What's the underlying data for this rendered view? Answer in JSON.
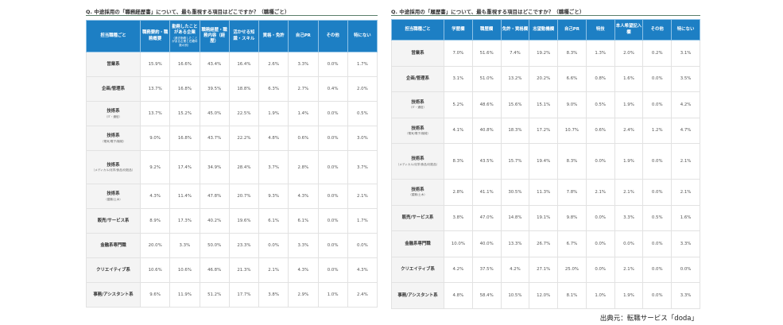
{
  "left_table": {
    "title": "Q. 中途採用の「職務経歴書」について、最も重視する項目はどこですか？（職種ごと）",
    "headers": [
      {
        "label": "担当職種ごと",
        "sub": ""
      },
      {
        "label": "職務要約・職務概要",
        "sub": ""
      },
      {
        "label": "勤務したことがある企業",
        "sub": "（過去勤務したことがある企業と在籍年数の別）"
      },
      {
        "label": "職務経歴・職務内容（経歴）",
        "sub": ""
      },
      {
        "label": "活かせる知識・スキル",
        "sub": ""
      },
      {
        "label": "資格・免許",
        "sub": ""
      },
      {
        "label": "自己PR",
        "sub": ""
      },
      {
        "label": "その他",
        "sub": ""
      },
      {
        "label": "特にない",
        "sub": ""
      }
    ],
    "rows": [
      {
        "category": "営業系",
        "sub": "",
        "values": [
          "15.9%",
          "16.6%",
          "43.4%",
          "16.4%",
          "2.6%",
          "3.3%",
          "0.0%",
          "1.7%"
        ]
      },
      {
        "category": "企画/管理系",
        "sub": "",
        "values": [
          "13.7%",
          "16.8%",
          "39.5%",
          "18.8%",
          "6.3%",
          "2.7%",
          "0.4%",
          "2.0%"
        ]
      },
      {
        "category": "技術系",
        "sub": "（IT・通信）",
        "values": [
          "13.7%",
          "15.2%",
          "45.0%",
          "22.5%",
          "1.9%",
          "1.4%",
          "0.0%",
          "0.5%"
        ]
      },
      {
        "category": "技術系",
        "sub": "（電気/電子/機械）",
        "values": [
          "9.0%",
          "16.8%",
          "43.7%",
          "22.2%",
          "4.8%",
          "0.6%",
          "0.0%",
          "3.0%"
        ]
      },
      {
        "category": "技術系",
        "sub": "（メディカル/化学/食品/化粧品）",
        "values": [
          "9.2%",
          "17.4%",
          "34.9%",
          "28.4%",
          "3.7%",
          "2.8%",
          "0.0%",
          "3.7%"
        ]
      },
      {
        "category": "技術系",
        "sub": "（建築/土木）",
        "values": [
          "4.3%",
          "11.4%",
          "47.8%",
          "20.7%",
          "9.3%",
          "4.3%",
          "0.0%",
          "2.1%"
        ]
      },
      {
        "category": "販売/サービス系",
        "sub": "",
        "values": [
          "8.9%",
          "17.3%",
          "40.2%",
          "19.6%",
          "6.1%",
          "6.1%",
          "0.0%",
          "1.7%"
        ]
      },
      {
        "category": "金融系専門職",
        "sub": "",
        "values": [
          "20.0%",
          "3.3%",
          "50.0%",
          "23.3%",
          "0.0%",
          "3.3%",
          "0.0%",
          "0.0%"
        ]
      },
      {
        "category": "クリエイティブ系",
        "sub": "",
        "values": [
          "10.6%",
          "10.6%",
          "46.8%",
          "21.3%",
          "2.1%",
          "4.3%",
          "0.0%",
          "4.3%"
        ]
      },
      {
        "category": "事務/アシスタント系",
        "sub": "",
        "values": [
          "9.6%",
          "11.9%",
          "51.2%",
          "17.7%",
          "3.8%",
          "2.9%",
          "1.0%",
          "2.4%"
        ]
      }
    ]
  },
  "right_table": {
    "title": "Q. 中途採用の「履歴書」について、最も重視する項目はどこですか？（職種ごと）",
    "headers": [
      {
        "label": "担当職種ごと",
        "sub": ""
      },
      {
        "label": "学歴欄",
        "sub": ""
      },
      {
        "label": "職歴欄",
        "sub": ""
      },
      {
        "label": "免許・資格欄",
        "sub": ""
      },
      {
        "label": "志望動機欄",
        "sub": ""
      },
      {
        "label": "自己PR",
        "sub": ""
      },
      {
        "label": "特技",
        "sub": ""
      },
      {
        "label": "本人希望記入欄",
        "sub": ""
      },
      {
        "label": "その他",
        "sub": ""
      },
      {
        "label": "特にない",
        "sub": ""
      }
    ],
    "rows": [
      {
        "category": "営業系",
        "sub": "",
        "values": [
          "7.0%",
          "51.6%",
          "7.4%",
          "19.2%",
          "8.3%",
          "1.3%",
          "2.0%",
          "0.2%",
          "3.1%"
        ]
      },
      {
        "category": "企画/管理系",
        "sub": "",
        "values": [
          "3.1%",
          "51.0%",
          "13.2%",
          "20.2%",
          "6.6%",
          "0.8%",
          "1.6%",
          "0.0%",
          "3.5%"
        ]
      },
      {
        "category": "技術系",
        "sub": "（IT・通信）",
        "values": [
          "5.2%",
          "48.6%",
          "15.6%",
          "15.1%",
          "9.0%",
          "0.5%",
          "1.9%",
          "0.0%",
          "4.2%"
        ]
      },
      {
        "category": "技術系",
        "sub": "（電気/電子/機械）",
        "values": [
          "4.1%",
          "40.8%",
          "18.3%",
          "17.2%",
          "10.7%",
          "0.6%",
          "2.4%",
          "1.2%",
          "4.7%"
        ]
      },
      {
        "category": "技術系",
        "sub": "（メディカル/化学/食品/化粧品）",
        "values": [
          "8.3%",
          "43.5%",
          "15.7%",
          "19.4%",
          "8.3%",
          "0.0%",
          "1.9%",
          "0.0%",
          "2.1%"
        ]
      },
      {
        "category": "技術系",
        "sub": "（建築/土木）",
        "values": [
          "2.8%",
          "41.1%",
          "30.5%",
          "11.3%",
          "7.8%",
          "2.1%",
          "2.1%",
          "0.0%",
          "2.1%"
        ]
      },
      {
        "category": "販売/サービス系",
        "sub": "",
        "values": [
          "3.8%",
          "47.0%",
          "14.8%",
          "19.1%",
          "9.8%",
          "0.0%",
          "3.3%",
          "0.5%",
          "1.6%"
        ]
      },
      {
        "category": "金融系専門職",
        "sub": "",
        "values": [
          "10.0%",
          "40.0%",
          "13.3%",
          "26.7%",
          "6.7%",
          "0.0%",
          "0.0%",
          "0.0%",
          "3.3%"
        ]
      },
      {
        "category": "クリエイティブ系",
        "sub": "",
        "values": [
          "4.2%",
          "37.5%",
          "4.2%",
          "27.1%",
          "25.0%",
          "0.0%",
          "2.1%",
          "0.0%",
          "0.0%"
        ]
      },
      {
        "category": "事務/アシスタント系",
        "sub": "",
        "values": [
          "4.8%",
          "58.4%",
          "10.5%",
          "12.0%",
          "8.1%",
          "1.0%",
          "1.9%",
          "0.0%",
          "3.3%"
        ]
      }
    ]
  },
  "source": "出典元：転職サービス「doda」",
  "colors": {
    "header_bg": "#1d7fc4",
    "category_bg": "#f4f4f4",
    "title_rule": "#5a7f6a"
  }
}
